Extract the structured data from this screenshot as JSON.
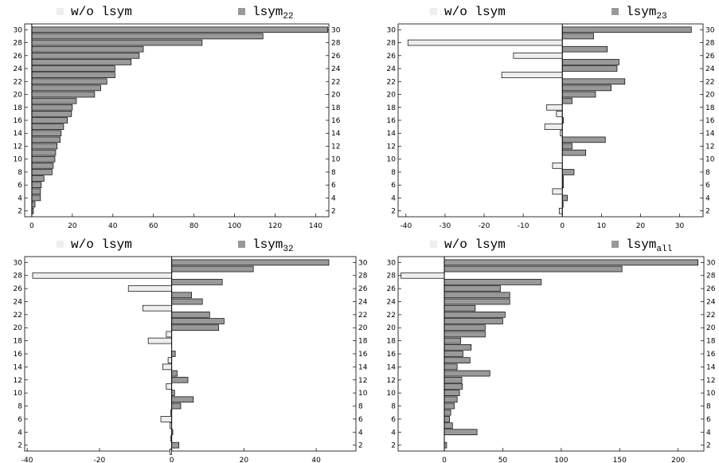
{
  "chart_data": [
    {
      "type": "hbar",
      "legend": [
        {
          "name": "w/o lsym",
          "color": "#eeeeee"
        },
        {
          "name": "lsym",
          "sub": "22",
          "color": "#999999"
        }
      ],
      "y": [
        1,
        2,
        3,
        4,
        5,
        6,
        7,
        8,
        9,
        10,
        11,
        12,
        13,
        14,
        15,
        16,
        17,
        18,
        19,
        20,
        21,
        22,
        23,
        24,
        25,
        26,
        27,
        28,
        29,
        30
      ],
      "values": [
        0,
        0.8,
        1.6,
        4.3,
        4.3,
        4.7,
        6,
        10,
        10.6,
        11.4,
        11.8,
        12.5,
        14,
        14.5,
        15.7,
        17.6,
        19.6,
        20,
        22,
        31,
        34,
        37,
        41,
        41,
        49,
        53,
        55,
        84,
        114,
        146
      ],
      "xlim": [
        -3.5,
        146.5
      ],
      "xticks": [
        0,
        20,
        40,
        60,
        80,
        100,
        120,
        140
      ],
      "ylim": [
        1.1,
        30.9
      ],
      "yticks": [
        2,
        4,
        6,
        8,
        10,
        12,
        14,
        16,
        18,
        20,
        22,
        24,
        26,
        28,
        30
      ]
    },
    {
      "type": "hbar",
      "legend": [
        {
          "name": "w/o lsym",
          "color": "#eeeeee"
        },
        {
          "name": "lsym",
          "sub": "23",
          "color": "#999999"
        }
      ],
      "y": [
        1,
        2,
        3,
        4,
        5,
        6,
        7,
        8,
        9,
        10,
        11,
        12,
        13,
        14,
        15,
        16,
        17,
        18,
        19,
        20,
        21,
        22,
        23,
        24,
        25,
        26,
        27,
        28,
        29,
        30
      ],
      "values": [
        0,
        -0.8,
        0.2,
        1.3,
        -2.5,
        0.3,
        0.3,
        3,
        -2.5,
        0,
        6,
        2.5,
        11,
        -0.5,
        -4.5,
        0.3,
        -1.5,
        -4,
        2.5,
        8.5,
        12.5,
        16,
        -15.5,
        14,
        14.5,
        -12.5,
        11.5,
        -39.5,
        8,
        33
      ],
      "xlim": [
        -42,
        36
      ],
      "xticks": [
        -40,
        -30,
        -20,
        -10,
        0,
        10,
        20,
        30
      ],
      "ylim": [
        1.1,
        30.9
      ],
      "yticks": [
        2,
        4,
        6,
        8,
        10,
        12,
        14,
        16,
        18,
        20,
        22,
        24,
        26,
        28,
        30
      ]
    },
    {
      "type": "hbar",
      "legend": [
        {
          "name": "w/o lsym",
          "color": "#eeeeee"
        },
        {
          "name": "lsym",
          "sub": "32",
          "color": "#999999"
        }
      ],
      "y": [
        1,
        2,
        3,
        4,
        5,
        6,
        7,
        8,
        9,
        10,
        11,
        12,
        13,
        14,
        15,
        16,
        17,
        18,
        19,
        20,
        21,
        22,
        23,
        24,
        25,
        26,
        27,
        28,
        29,
        30
      ],
      "values": [
        -0.5,
        2,
        -0.3,
        0.3,
        -0.5,
        -3,
        -0.3,
        2.5,
        6,
        0.8,
        -1.5,
        4.5,
        1.5,
        -2.5,
        -1,
        1,
        0,
        -6.5,
        -1.5,
        13,
        14.5,
        10.5,
        -8,
        8.5,
        5.5,
        -12,
        14,
        -38.5,
        22.6,
        43.5
      ],
      "xlim": [
        -40.7,
        51
      ],
      "xticks": [
        -40,
        -20,
        0,
        20,
        40
      ],
      "ylim": [
        1.1,
        30.9
      ],
      "yticks": [
        2,
        4,
        6,
        8,
        10,
        12,
        14,
        16,
        18,
        20,
        22,
        24,
        26,
        28,
        30
      ]
    },
    {
      "type": "hbar",
      "legend": [
        {
          "name": "w/o lsym",
          "color": "#eeeeee"
        },
        {
          "name": "lsym",
          "sub": "all",
          "color": "#999999"
        }
      ],
      "y": [
        1,
        2,
        3,
        4,
        5,
        6,
        7,
        8,
        9,
        10,
        11,
        12,
        13,
        14,
        15,
        16,
        17,
        18,
        19,
        20,
        21,
        22,
        23,
        24,
        25,
        26,
        27,
        28,
        29,
        30
      ],
      "values": [
        0,
        2,
        0,
        28,
        7,
        4.5,
        5.5,
        8.5,
        11,
        13,
        15.5,
        15,
        39,
        11,
        22,
        16,
        23,
        14,
        35,
        35,
        50,
        52,
        26.5,
        56,
        56,
        48,
        83,
        -37,
        152,
        217
      ],
      "xlim": [
        -39.5,
        222
      ],
      "xticks": [
        0,
        50,
        100,
        150,
        200
      ],
      "ylim": [
        1.1,
        30.9
      ],
      "yticks": [
        2,
        4,
        6,
        8,
        10,
        12,
        14,
        16,
        18,
        20,
        22,
        24,
        26,
        28,
        30
      ]
    }
  ]
}
